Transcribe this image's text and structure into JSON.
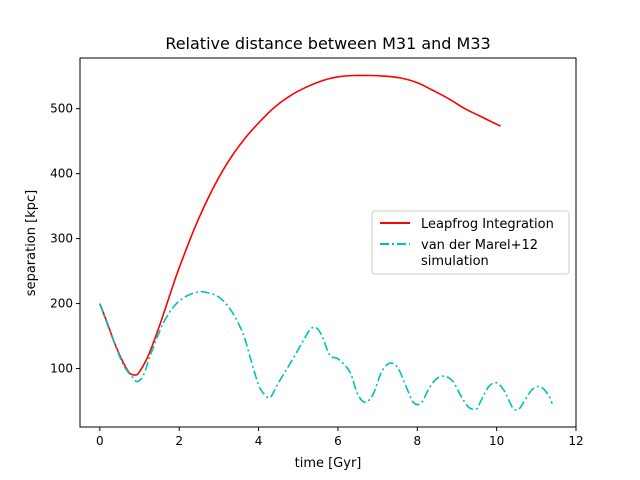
{
  "chart_data": {
    "type": "line",
    "title": "Relative distance between M31 and M33",
    "xlabel": "time [Gyr]",
    "ylabel": "separation [kpc]",
    "xlim": [
      -0.5,
      12
    ],
    "ylim": [
      10,
      578
    ],
    "xticks": [
      0,
      2,
      4,
      6,
      8,
      10,
      12
    ],
    "yticks": [
      100,
      200,
      300,
      400,
      500
    ],
    "grid": false,
    "legend_position": "center-right",
    "series": [
      {
        "name": "Leapfrog Integration",
        "color": "#ff0000",
        "style": "solid",
        "x": [
          0,
          0.2,
          0.4,
          0.6,
          0.75,
          0.9,
          1.0,
          1.2,
          1.4,
          1.6,
          1.8,
          2.0,
          2.4,
          2.8,
          3.2,
          3.6,
          4.0,
          4.4,
          4.8,
          5.2,
          5.6,
          6.0,
          6.4,
          6.8,
          7.2,
          7.6,
          8.0,
          8.4,
          8.8,
          9.2,
          9.6,
          10.1
        ],
        "y": [
          200,
          168,
          135,
          108,
          93,
          90,
          95,
          117,
          148,
          183,
          220,
          255,
          318,
          371,
          415,
          450,
          478,
          502,
          520,
          533,
          543,
          549,
          551,
          551,
          550,
          547,
          540,
          528,
          515,
          500,
          488,
          473
        ]
      },
      {
        "name": "van der Marel+12\nsimulation",
        "color": "#00bfbf",
        "style": "dashdot",
        "x": [
          0,
          0.3,
          0.6,
          0.85,
          0.95,
          1.1,
          1.3,
          1.6,
          1.9,
          2.2,
          2.5,
          2.7,
          3.0,
          3.3,
          3.6,
          3.8,
          4.0,
          4.15,
          4.3,
          4.5,
          4.8,
          5.1,
          5.3,
          5.45,
          5.6,
          5.8,
          6.0,
          6.3,
          6.5,
          6.7,
          6.9,
          7.1,
          7.3,
          7.5,
          7.7,
          7.9,
          8.1,
          8.3,
          8.5,
          8.7,
          8.9,
          9.1,
          9.3,
          9.5,
          9.6,
          9.8,
          10.0,
          10.2,
          10.4,
          10.55,
          10.7,
          10.9,
          11.1,
          11.3,
          11.4
        ],
        "y": [
          200,
          150,
          105,
          85,
          80,
          90,
          125,
          170,
          198,
          212,
          218,
          217,
          210,
          190,
          155,
          115,
          75,
          60,
          56,
          78,
          108,
          140,
          160,
          163,
          150,
          120,
          115,
          95,
          60,
          48,
          62,
          95,
          108,
          102,
          75,
          48,
          47,
          70,
          85,
          88,
          80,
          58,
          40,
          38,
          50,
          72,
          78,
          65,
          40,
          37,
          50,
          68,
          72,
          60,
          46
        ]
      }
    ]
  }
}
